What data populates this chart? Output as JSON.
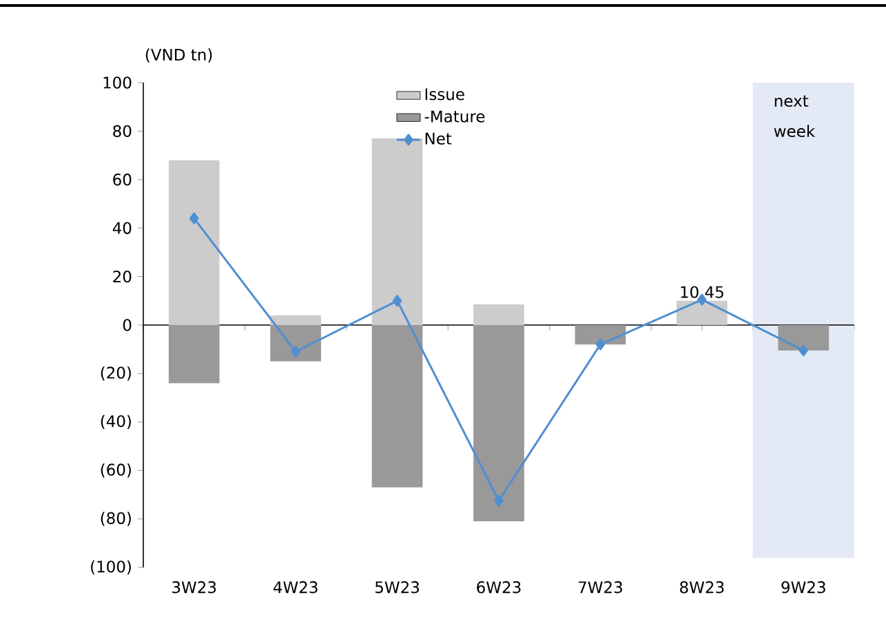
{
  "chart_data": {
    "type": "bar",
    "ylabel": "(VND tn)",
    "categories": [
      "3W23",
      "4W23",
      "5W23",
      "6W23",
      "7W23",
      "8W23",
      "9W23"
    ],
    "series": [
      {
        "name": "Issue",
        "color": "#cccccc",
        "values": [
          68,
          4,
          77,
          8.5,
          0,
          10,
          0
        ]
      },
      {
        "name": "-Mature",
        "color": "#999999",
        "values": [
          -24,
          -15,
          -67,
          -81,
          -8,
          0,
          -10.5
        ]
      },
      {
        "name": "Net",
        "type": "line",
        "color": "#4f8fd0",
        "marker": "diamond",
        "values": [
          44,
          -11,
          10,
          -72.5,
          -8,
          10.45,
          -10.5
        ]
      }
    ],
    "ylim": [
      -100,
      100
    ],
    "yticks": [
      {
        "value": -100,
        "label": "(100)"
      },
      {
        "value": -80,
        "label": "(80)"
      },
      {
        "value": -60,
        "label": "(60)"
      },
      {
        "value": -40,
        "label": "(40)"
      },
      {
        "value": -20,
        "label": "(20)"
      },
      0,
      20,
      40,
      60,
      80,
      100
    ],
    "bands": [
      {
        "axis": "x",
        "from": "9W23",
        "to": "9W23",
        "label": "next week",
        "color": "#e3eaf5"
      }
    ],
    "ref_lines": [
      {
        "axis": "y",
        "value": 0,
        "color": "#000000"
      }
    ],
    "annotations": [
      {
        "text": "10.45",
        "x": "8W23",
        "y": 10.45
      }
    ],
    "stacked": true,
    "legend": "top",
    "grid": false
  }
}
